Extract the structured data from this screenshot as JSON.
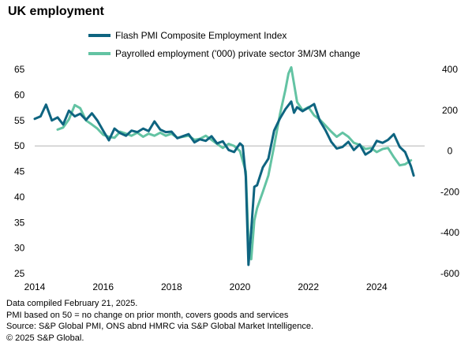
{
  "title": "UK employment",
  "chart_data": {
    "type": "line",
    "x_range": [
      2014.0,
      2025.4
    ],
    "x_ticks": [
      "2014",
      "2016",
      "2018",
      "2020",
      "2022",
      "2024"
    ],
    "x_tick_values": [
      2014,
      2016,
      2018,
      2020,
      2022,
      2024
    ],
    "left_axis": {
      "range": [
        25,
        65
      ],
      "ticks": [
        "25",
        "30",
        "35",
        "40",
        "45",
        "50",
        "55",
        "60",
        "65"
      ],
      "tick_values": [
        25,
        30,
        35,
        40,
        45,
        50,
        55,
        60,
        65
      ]
    },
    "right_axis": {
      "range": [
        -600,
        400
      ],
      "ticks": [
        "-600",
        "-400",
        "-200",
        "0",
        "200",
        "400"
      ],
      "tick_values": [
        -600,
        -400,
        -200,
        0,
        200,
        400
      ]
    },
    "reference_line": {
      "axis": "left",
      "value": 50
    },
    "series": [
      {
        "name": "Flash PMI Composite Employment Index",
        "axis": "left",
        "color": "#0e6480",
        "x": [
          2014.0,
          2014.17,
          2014.33,
          2014.5,
          2014.67,
          2014.83,
          2015.0,
          2015.17,
          2015.33,
          2015.5,
          2015.67,
          2015.83,
          2016.0,
          2016.17,
          2016.33,
          2016.5,
          2016.67,
          2016.83,
          2017.0,
          2017.17,
          2017.33,
          2017.5,
          2017.67,
          2017.83,
          2018.0,
          2018.17,
          2018.33,
          2018.5,
          2018.67,
          2018.83,
          2019.0,
          2019.17,
          2019.33,
          2019.5,
          2019.67,
          2019.83,
          2020.0,
          2020.08,
          2020.17,
          2020.25,
          2020.33,
          2020.42,
          2020.5,
          2020.67,
          2020.83,
          2021.0,
          2021.17,
          2021.33,
          2021.5,
          2021.58,
          2021.67,
          2021.83,
          2022.0,
          2022.17,
          2022.33,
          2022.5,
          2022.67,
          2022.83,
          2023.0,
          2023.17,
          2023.33,
          2023.5,
          2023.67,
          2023.83,
          2024.0,
          2024.17,
          2024.33,
          2024.5,
          2024.67,
          2024.83,
          2025.0,
          2025.08
        ],
        "values": [
          55.3,
          55.8,
          58.1,
          55.0,
          55.6,
          54.2,
          56.9,
          55.8,
          56.3,
          55.1,
          56.4,
          55.0,
          53.0,
          51.1,
          53.4,
          52.5,
          52.0,
          53.0,
          52.7,
          53.4,
          52.9,
          54.8,
          53.2,
          52.7,
          52.8,
          51.5,
          51.9,
          52.3,
          50.7,
          51.3,
          51.0,
          51.9,
          50.5,
          50.9,
          49.2,
          48.8,
          50.5,
          50.0,
          44.0,
          26.7,
          33.5,
          42.0,
          42.3,
          45.8,
          47.5,
          53.0,
          55.4,
          57.2,
          58.7,
          56.5,
          57.6,
          56.8,
          57.5,
          58.2,
          55.0,
          53.1,
          50.8,
          49.5,
          49.8,
          50.8,
          49.2,
          50.3,
          48.3,
          49.0,
          51.0,
          50.6,
          51.2,
          52.3,
          49.8,
          48.8,
          46.0,
          44.2
        ]
      },
      {
        "name": "Payrolled employment ('000) private sector 3M/3M change",
        "axis": "right",
        "color": "#63c3a3",
        "x": [
          2014.67,
          2014.83,
          2015.0,
          2015.17,
          2015.33,
          2015.5,
          2015.67,
          2015.83,
          2016.0,
          2016.17,
          2016.33,
          2016.5,
          2016.67,
          2016.83,
          2017.0,
          2017.17,
          2017.33,
          2017.5,
          2017.67,
          2017.83,
          2018.0,
          2018.17,
          2018.33,
          2018.5,
          2018.67,
          2018.83,
          2019.0,
          2019.17,
          2019.33,
          2019.5,
          2019.67,
          2019.83,
          2020.0,
          2020.17,
          2020.25,
          2020.33,
          2020.42,
          2020.5,
          2020.67,
          2020.83,
          2021.0,
          2021.17,
          2021.33,
          2021.42,
          2021.5,
          2021.58,
          2021.67,
          2021.83,
          2022.0,
          2022.17,
          2022.33,
          2022.5,
          2022.67,
          2022.83,
          2023.0,
          2023.17,
          2023.33,
          2023.5,
          2023.67,
          2023.83,
          2024.0,
          2024.17,
          2024.33,
          2024.5,
          2024.67,
          2024.83,
          2025.0
        ],
        "values": [
          105,
          115,
          155,
          225,
          210,
          150,
          130,
          110,
          80,
          70,
          65,
          95,
          85,
          75,
          90,
          70,
          85,
          75,
          90,
          75,
          85,
          65,
          70,
          75,
          55,
          60,
          75,
          55,
          35,
          15,
          35,
          25,
          0,
          -100,
          -440,
          -530,
          -340,
          -280,
          -200,
          -120,
          25,
          180,
          300,
          380,
          410,
          330,
          240,
          200,
          215,
          175,
          155,
          125,
          95,
          70,
          90,
          70,
          40,
          30,
          10,
          15,
          -5,
          10,
          15,
          -30,
          -70,
          -65,
          -45
        ]
      }
    ]
  },
  "notes": [
    "Data compiled February 21, 2025.",
    "PMI based on 50 = no change on prior month, covers goods and services",
    "Source: S&P Global PMI,  ONS abnd HMRC via S&P Global Market Intelligence.",
    "© 2025 S&P Global."
  ]
}
